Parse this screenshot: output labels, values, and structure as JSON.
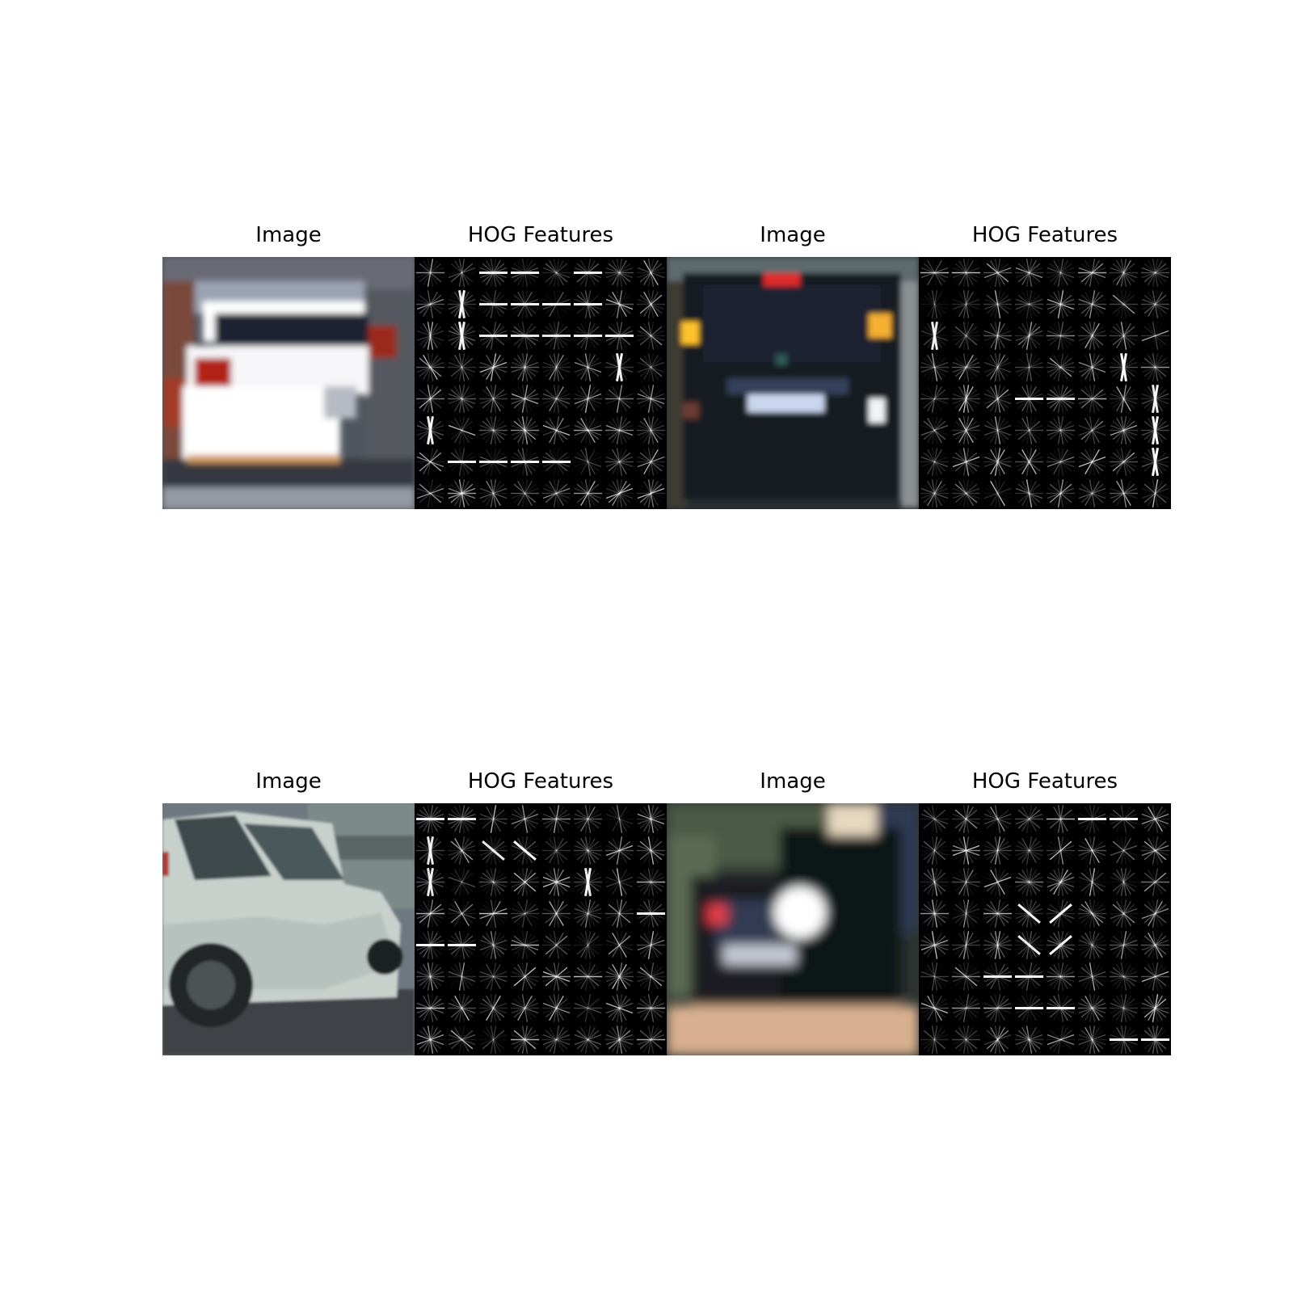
{
  "panels": [
    {
      "title": "Image",
      "kind": "photo",
      "icon": "car-rear-white"
    },
    {
      "title": "HOG Features",
      "kind": "hog"
    },
    {
      "title": "Image",
      "kind": "photo",
      "icon": "car-rear-dark"
    },
    {
      "title": "HOG Features",
      "kind": "hog"
    },
    {
      "title": "Image",
      "kind": "photo",
      "icon": "car-side-white"
    },
    {
      "title": "HOG Features",
      "kind": "hog"
    },
    {
      "title": "Image",
      "kind": "photo",
      "icon": "car-rear-blurry"
    },
    {
      "title": "HOG Features",
      "kind": "hog"
    }
  ],
  "colors": {
    "background": "#ffffff",
    "hog_background": "#000000",
    "hog_stroke": "#ffffff"
  }
}
